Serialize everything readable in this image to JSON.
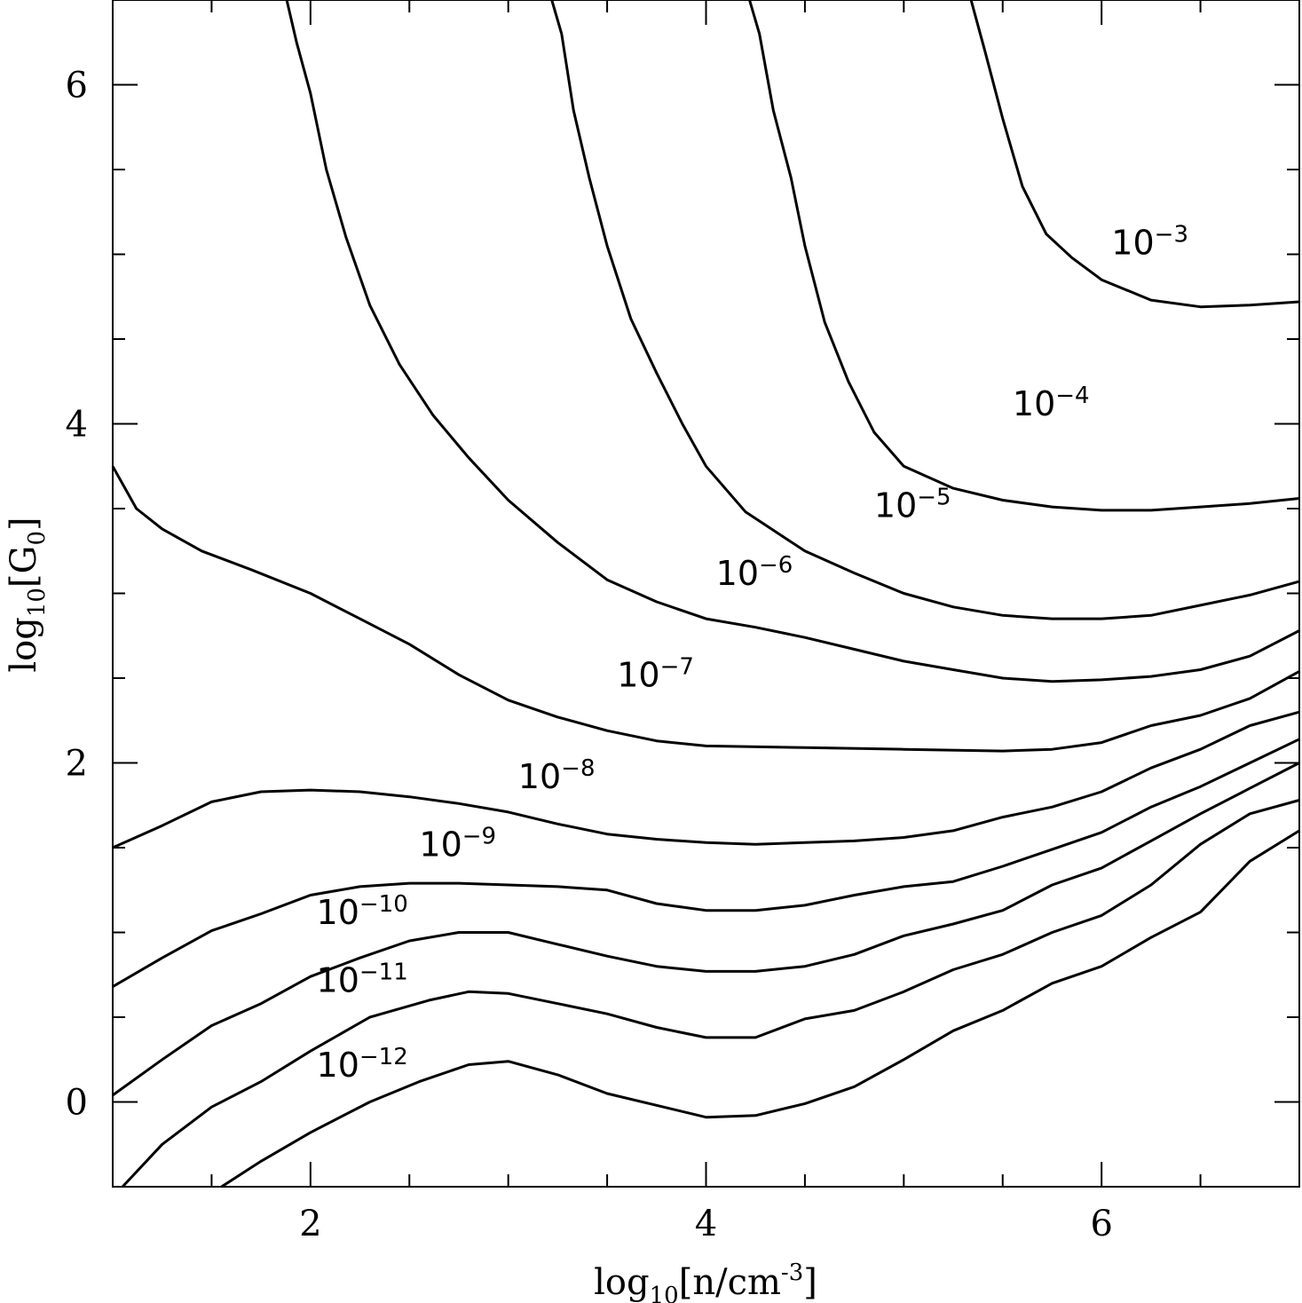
{
  "chart_data": {
    "type": "line",
    "title": "",
    "xlabel": {
      "base": "log",
      "sub": "10",
      "rest": "[n/cm",
      "sup": "-3",
      "close": "]"
    },
    "ylabel": {
      "base": "log",
      "sub": "10",
      "rest": "[G",
      "sub2": "0",
      "close": "]"
    },
    "xlim": [
      1.0,
      7.0
    ],
    "ylim": [
      -0.5,
      6.5
    ],
    "xticks": [
      {
        "value": 2,
        "label": "2"
      },
      {
        "value": 4,
        "label": "4"
      },
      {
        "value": 6,
        "label": "6"
      }
    ],
    "yticks": [
      {
        "value": 0,
        "label": "0"
      },
      {
        "value": 2,
        "label": "2"
      },
      {
        "value": 4,
        "label": "4"
      },
      {
        "value": 6,
        "label": "6"
      }
    ],
    "minor_xticks": [
      1.5,
      2.5,
      3,
      3.5,
      4.5,
      5,
      5.5,
      6.5
    ],
    "minor_yticks": [
      0.5,
      1,
      1.5,
      2.5,
      3,
      3.5,
      4.5,
      5,
      5.5
    ],
    "color": "#000000",
    "series": [
      {
        "name": "1e-3",
        "label": {
          "base": "10",
          "exp": "-3",
          "x": 6.05,
          "y": 5.0
        },
        "points": [
          [
            5.34,
            6.5
          ],
          [
            5.41,
            6.2
          ],
          [
            5.5,
            5.8
          ],
          [
            5.6,
            5.4
          ],
          [
            5.72,
            5.12
          ],
          [
            5.85,
            4.98
          ],
          [
            6.0,
            4.85
          ],
          [
            6.25,
            4.73
          ],
          [
            6.5,
            4.69
          ],
          [
            6.75,
            4.7
          ],
          [
            7.0,
            4.72
          ]
        ]
      },
      {
        "name": "1e-4",
        "label": {
          "base": "10",
          "exp": "-4",
          "x": 5.55,
          "y": 4.05
        },
        "points": [
          [
            4.22,
            6.5
          ],
          [
            4.27,
            6.3
          ],
          [
            4.34,
            5.85
          ],
          [
            4.43,
            5.45
          ],
          [
            4.5,
            5.05
          ],
          [
            4.6,
            4.6
          ],
          [
            4.72,
            4.25
          ],
          [
            4.85,
            3.95
          ],
          [
            5.0,
            3.75
          ],
          [
            5.25,
            3.62
          ],
          [
            5.5,
            3.55
          ],
          [
            5.75,
            3.51
          ],
          [
            6.0,
            3.49
          ],
          [
            6.25,
            3.49
          ],
          [
            6.5,
            3.51
          ],
          [
            6.75,
            3.53
          ],
          [
            7.0,
            3.56
          ]
        ]
      },
      {
        "name": "1e-5",
        "label": {
          "base": "10",
          "exp": "-5",
          "x": 4.85,
          "y": 3.45
        },
        "points": [
          [
            3.22,
            6.5
          ],
          [
            3.27,
            6.3
          ],
          [
            3.33,
            5.85
          ],
          [
            3.41,
            5.45
          ],
          [
            3.5,
            5.05
          ],
          [
            3.62,
            4.62
          ],
          [
            3.75,
            4.3
          ],
          [
            3.88,
            4.0
          ],
          [
            4.0,
            3.75
          ],
          [
            4.2,
            3.48
          ],
          [
            4.5,
            3.25
          ],
          [
            4.75,
            3.12
          ],
          [
            5.0,
            3.0
          ],
          [
            5.25,
            2.92
          ],
          [
            5.5,
            2.87
          ],
          [
            5.75,
            2.85
          ],
          [
            6.0,
            2.85
          ],
          [
            6.25,
            2.87
          ],
          [
            6.5,
            2.93
          ],
          [
            6.75,
            2.99
          ],
          [
            7.0,
            3.07
          ]
        ]
      },
      {
        "name": "1e-6",
        "label": {
          "base": "10",
          "exp": "-6",
          "x": 4.05,
          "y": 3.05
        },
        "points": [
          [
            1.88,
            6.5
          ],
          [
            1.93,
            6.25
          ],
          [
            2.0,
            5.95
          ],
          [
            2.08,
            5.5
          ],
          [
            2.18,
            5.1
          ],
          [
            2.3,
            4.7
          ],
          [
            2.45,
            4.35
          ],
          [
            2.62,
            4.05
          ],
          [
            2.8,
            3.8
          ],
          [
            3.0,
            3.55
          ],
          [
            3.25,
            3.3
          ],
          [
            3.5,
            3.08
          ],
          [
            3.75,
            2.95
          ],
          [
            4.0,
            2.85
          ],
          [
            4.25,
            2.8
          ],
          [
            4.5,
            2.74
          ],
          [
            4.75,
            2.67
          ],
          [
            5.0,
            2.6
          ],
          [
            5.25,
            2.55
          ],
          [
            5.5,
            2.5
          ],
          [
            5.75,
            2.48
          ],
          [
            6.0,
            2.49
          ],
          [
            6.25,
            2.51
          ],
          [
            6.5,
            2.55
          ],
          [
            6.75,
            2.63
          ],
          [
            7.0,
            2.78
          ]
        ]
      },
      {
        "name": "1e-7",
        "label": {
          "base": "10",
          "exp": "-7",
          "x": 3.55,
          "y": 2.45
        },
        "points": [
          [
            1.0,
            3.75
          ],
          [
            1.12,
            3.5
          ],
          [
            1.25,
            3.38
          ],
          [
            1.45,
            3.25
          ],
          [
            1.7,
            3.14
          ],
          [
            2.0,
            3.0
          ],
          [
            2.25,
            2.85
          ],
          [
            2.5,
            2.7
          ],
          [
            2.75,
            2.52
          ],
          [
            3.0,
            2.37
          ],
          [
            3.25,
            2.27
          ],
          [
            3.5,
            2.19
          ],
          [
            3.75,
            2.13
          ],
          [
            4.0,
            2.1
          ],
          [
            4.5,
            2.09
          ],
          [
            5.0,
            2.08
          ],
          [
            5.5,
            2.07
          ],
          [
            5.75,
            2.08
          ],
          [
            6.0,
            2.12
          ],
          [
            6.25,
            2.22
          ],
          [
            6.5,
            2.28
          ],
          [
            6.75,
            2.38
          ],
          [
            7.0,
            2.54
          ]
        ]
      },
      {
        "name": "1e-8",
        "label": {
          "base": "10",
          "exp": "-8",
          "x": 3.05,
          "y": 1.85
        },
        "points": [
          [
            1.0,
            1.5
          ],
          [
            1.25,
            1.63
          ],
          [
            1.5,
            1.77
          ],
          [
            1.75,
            1.83
          ],
          [
            2.0,
            1.84
          ],
          [
            2.25,
            1.83
          ],
          [
            2.5,
            1.8
          ],
          [
            2.75,
            1.76
          ],
          [
            3.0,
            1.71
          ],
          [
            3.25,
            1.64
          ],
          [
            3.5,
            1.58
          ],
          [
            3.75,
            1.55
          ],
          [
            4.0,
            1.53
          ],
          [
            4.25,
            1.52
          ],
          [
            4.5,
            1.53
          ],
          [
            4.75,
            1.54
          ],
          [
            5.0,
            1.56
          ],
          [
            5.25,
            1.6
          ],
          [
            5.5,
            1.68
          ],
          [
            5.75,
            1.74
          ],
          [
            6.0,
            1.83
          ],
          [
            6.25,
            1.97
          ],
          [
            6.5,
            2.08
          ],
          [
            6.75,
            2.22
          ],
          [
            7.0,
            2.3
          ]
        ]
      },
      {
        "name": "1e-9",
        "label": {
          "base": "10",
          "exp": "-9",
          "x": 2.55,
          "y": 1.45
        },
        "points": [
          [
            1.0,
            0.68
          ],
          [
            1.25,
            0.85
          ],
          [
            1.5,
            1.01
          ],
          [
            1.75,
            1.11
          ],
          [
            2.0,
            1.22
          ],
          [
            2.25,
            1.27
          ],
          [
            2.5,
            1.29
          ],
          [
            2.75,
            1.29
          ],
          [
            3.0,
            1.28
          ],
          [
            3.25,
            1.27
          ],
          [
            3.5,
            1.25
          ],
          [
            3.75,
            1.17
          ],
          [
            4.0,
            1.13
          ],
          [
            4.25,
            1.13
          ],
          [
            4.5,
            1.16
          ],
          [
            4.75,
            1.22
          ],
          [
            5.0,
            1.27
          ],
          [
            5.25,
            1.3
          ],
          [
            5.5,
            1.39
          ],
          [
            5.75,
            1.49
          ],
          [
            6.0,
            1.59
          ],
          [
            6.25,
            1.74
          ],
          [
            6.5,
            1.86
          ],
          [
            6.75,
            2.0
          ],
          [
            7.0,
            2.14
          ]
        ]
      },
      {
        "name": "1e-10",
        "label": {
          "base": "10",
          "exp": "-10",
          "x": 2.03,
          "y": 1.05
        },
        "points": [
          [
            1.0,
            0.04
          ],
          [
            1.25,
            0.25
          ],
          [
            1.5,
            0.45
          ],
          [
            1.75,
            0.58
          ],
          [
            2.0,
            0.74
          ],
          [
            2.25,
            0.85
          ],
          [
            2.5,
            0.95
          ],
          [
            2.75,
            1.0
          ],
          [
            3.0,
            1.0
          ],
          [
            3.25,
            0.93
          ],
          [
            3.5,
            0.86
          ],
          [
            3.75,
            0.8
          ],
          [
            4.0,
            0.77
          ],
          [
            4.25,
            0.77
          ],
          [
            4.5,
            0.8
          ],
          [
            4.75,
            0.87
          ],
          [
            5.0,
            0.98
          ],
          [
            5.25,
            1.05
          ],
          [
            5.5,
            1.13
          ],
          [
            5.75,
            1.28
          ],
          [
            6.0,
            1.38
          ],
          [
            6.25,
            1.54
          ],
          [
            6.5,
            1.7
          ],
          [
            6.75,
            1.85
          ],
          [
            7.0,
            2.0
          ]
        ]
      },
      {
        "name": "1e-11",
        "label": {
          "base": "10",
          "exp": "-11",
          "x": 2.03,
          "y": 0.65
        },
        "points": [
          [
            1.05,
            -0.5
          ],
          [
            1.25,
            -0.25
          ],
          [
            1.5,
            -0.03
          ],
          [
            1.75,
            0.12
          ],
          [
            2.0,
            0.3
          ],
          [
            2.3,
            0.5
          ],
          [
            2.6,
            0.6
          ],
          [
            2.8,
            0.65
          ],
          [
            3.0,
            0.64
          ],
          [
            3.25,
            0.58
          ],
          [
            3.5,
            0.52
          ],
          [
            3.75,
            0.44
          ],
          [
            4.0,
            0.38
          ],
          [
            4.25,
            0.38
          ],
          [
            4.5,
            0.49
          ],
          [
            4.75,
            0.54
          ],
          [
            5.0,
            0.65
          ],
          [
            5.25,
            0.78
          ],
          [
            5.5,
            0.87
          ],
          [
            5.75,
            1.0
          ],
          [
            6.0,
            1.1
          ],
          [
            6.25,
            1.28
          ],
          [
            6.5,
            1.52
          ],
          [
            6.75,
            1.7
          ],
          [
            7.0,
            1.78
          ]
        ]
      },
      {
        "name": "1e-12",
        "label": {
          "base": "10",
          "exp": "-12",
          "x": 2.03,
          "y": 0.15
        },
        "points": [
          [
            1.55,
            -0.5
          ],
          [
            1.75,
            -0.35
          ],
          [
            2.0,
            -0.18
          ],
          [
            2.3,
            0.0
          ],
          [
            2.55,
            0.12
          ],
          [
            2.8,
            0.22
          ],
          [
            3.0,
            0.24
          ],
          [
            3.25,
            0.16
          ],
          [
            3.5,
            0.05
          ],
          [
            3.75,
            -0.02
          ],
          [
            4.0,
            -0.09
          ],
          [
            4.25,
            -0.08
          ],
          [
            4.5,
            -0.01
          ],
          [
            4.75,
            0.09
          ],
          [
            5.0,
            0.25
          ],
          [
            5.25,
            0.42
          ],
          [
            5.5,
            0.54
          ],
          [
            5.75,
            0.7
          ],
          [
            6.0,
            0.8
          ],
          [
            6.25,
            0.97
          ],
          [
            6.5,
            1.12
          ],
          [
            6.75,
            1.42
          ],
          [
            7.0,
            1.6
          ]
        ]
      }
    ]
  }
}
